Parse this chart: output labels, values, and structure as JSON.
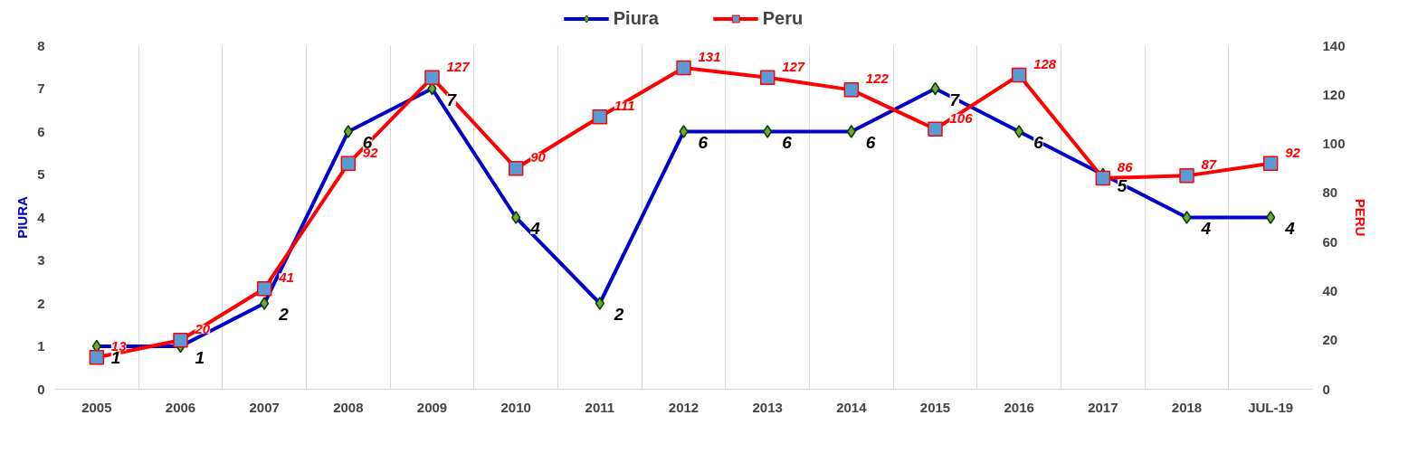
{
  "chart_data": {
    "type": "line",
    "categories": [
      "2005",
      "2006",
      "2007",
      "2008",
      "2009",
      "2010",
      "2011",
      "2012",
      "2013",
      "2014",
      "2015",
      "2016",
      "2017",
      "2018",
      "JUL-19"
    ],
    "ylabel": "PIURA",
    "y2label": "PERU",
    "series": [
      {
        "name": "Piura",
        "color": "#0000cc",
        "marker": "diamond",
        "values": [
          1,
          1,
          2,
          6,
          7,
          4,
          2,
          6,
          6,
          6,
          7,
          6,
          5,
          4,
          4
        ]
      },
      {
        "name": "Peru",
        "color": "#ff0000",
        "marker": "square",
        "axis": "y2",
        "values": [
          13,
          20,
          41,
          92,
          127,
          90,
          111,
          131,
          127,
          122,
          106,
          128,
          86,
          87,
          92
        ]
      }
    ],
    "ylim": [
      0,
      8
    ],
    "yticks": [
      0,
      1,
      2,
      3,
      4,
      5,
      6,
      7,
      8
    ],
    "y2lim": [
      0,
      140
    ],
    "y2ticks": [
      0,
      20,
      40,
      60,
      80,
      100,
      120,
      140
    ],
    "grid": "x",
    "legend": "top",
    "data_labels": true,
    "line_style": "solid"
  }
}
